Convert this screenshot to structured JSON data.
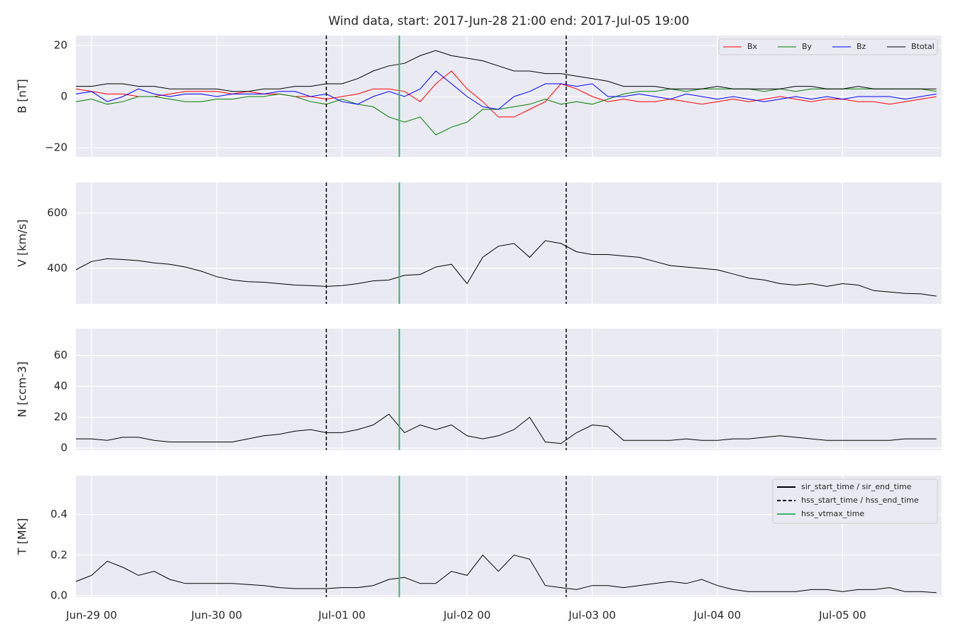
{
  "shared": {
    "x": [
      "Jun-28 21",
      "Jun-29 00",
      "Jun-29 03",
      "Jun-29 06",
      "Jun-29 09",
      "Jun-29 12",
      "Jun-29 15",
      "Jun-29 18",
      "Jun-29 21",
      "Jun-30 00",
      "Jun-30 03",
      "Jun-30 06",
      "Jun-30 09",
      "Jun-30 12",
      "Jun-30 15",
      "Jun-30 18",
      "Jun-30 21",
      "Jul-01 00",
      "Jul-01 03",
      "Jul-01 06",
      "Jul-01 09",
      "Jul-01 12",
      "Jul-01 15",
      "Jul-01 18",
      "Jul-01 21",
      "Jul-02 00",
      "Jul-02 03",
      "Jul-02 06",
      "Jul-02 09",
      "Jul-02 12",
      "Jul-02 15",
      "Jul-02 18",
      "Jul-02 21",
      "Jul-03 00",
      "Jul-03 03",
      "Jul-03 06",
      "Jul-03 09",
      "Jul-03 12",
      "Jul-03 15",
      "Jul-03 18",
      "Jul-03 21",
      "Jul-04 00",
      "Jul-04 03",
      "Jul-04 06",
      "Jul-04 09",
      "Jul-04 12",
      "Jul-04 15",
      "Jul-04 18",
      "Jul-04 21",
      "Jul-05 00",
      "Jul-05 03",
      "Jul-05 06",
      "Jul-05 09",
      "Jul-05 12",
      "Jul-05 15",
      "Jul-05 18"
    ],
    "xlim": [
      "Jun-28 21",
      "Jul-05 19"
    ],
    "xticks": [
      "Jun-29 00",
      "Jun-30 00",
      "Jul-01 00",
      "Jul-02 00",
      "Jul-03 00",
      "Jul-04 00",
      "Jul-05 00"
    ],
    "grid": true,
    "events_legend": "upper right",
    "events": [
      {
        "name": "sir_start_time / sir_end_time",
        "color": "#000000",
        "dash": "solid",
        "x": []
      },
      {
        "name": "hss_start_time / hss_end_time",
        "color": "#000000",
        "dash": "dashed",
        "x": [
          "Jun-30 21",
          "Jul-02 19"
        ]
      },
      {
        "name": "hss_vtmax_time",
        "color": "#3cb371",
        "dash": "solid",
        "x": [
          "Jul-01 11"
        ]
      }
    ]
  },
  "chart_data": [
    {
      "type": "line",
      "title": "Wind data, start: 2017-Jun-28 21:00  end: 2017-Jul-05 19:00",
      "ylabel": "B [nT]",
      "ylim": [
        -23.6,
        23.9
      ],
      "yticks": [
        {
          "value": -20,
          "label": "−20"
        },
        0,
        20
      ],
      "legend": "upper right",
      "series": [
        {
          "name": "Bx",
          "color": "#ff0000",
          "values": [
            3,
            2,
            1,
            1,
            0,
            0,
            1,
            2,
            2,
            2,
            1,
            2,
            1,
            1,
            0,
            0,
            -1,
            0,
            1,
            3,
            3,
            2,
            -2,
            5,
            10,
            3,
            -2,
            -8,
            -8,
            -5,
            -2,
            5,
            3,
            0,
            -2,
            -1,
            -2,
            -2,
            -1,
            -2,
            -3,
            -2,
            -1,
            -2,
            -1,
            0,
            -1,
            -2,
            -1,
            -1,
            -2,
            -2,
            -3,
            -2,
            -1,
            0
          ]
        },
        {
          "name": "By",
          "color": "#008000",
          "values": [
            -2,
            -1,
            -3,
            -2,
            0,
            0,
            -1,
            -2,
            -2,
            -1,
            -1,
            0,
            0,
            1,
            0,
            -2,
            -3,
            -1,
            -3,
            -4,
            -8,
            -10,
            -8,
            -15,
            -12,
            -10,
            -5,
            -5,
            -4,
            -3,
            -1,
            -3,
            -2,
            -3,
            -1,
            1,
            2,
            2,
            3,
            2,
            3,
            3,
            3,
            3,
            2,
            3,
            2,
            3,
            3,
            3,
            3,
            3,
            3,
            3,
            3,
            2
          ]
        },
        {
          "name": "Bz",
          "color": "#0000ff",
          "values": [
            1,
            2,
            -2,
            0,
            3,
            1,
            0,
            1,
            1,
            0,
            1,
            1,
            1,
            2,
            2,
            0,
            1,
            -2,
            -3,
            0,
            2,
            0,
            3,
            10,
            5,
            0,
            -4,
            -5,
            0,
            2,
            5,
            5,
            4,
            5,
            0,
            0,
            1,
            0,
            -1,
            1,
            0,
            -1,
            0,
            -1,
            -2,
            -1,
            0,
            -1,
            0,
            -1,
            0,
            0,
            0,
            -1,
            0,
            1
          ]
        },
        {
          "name": "Btotal",
          "color": "#000000",
          "values": [
            4,
            4,
            5,
            5,
            4,
            4,
            3,
            3,
            3,
            3,
            2,
            2,
            3,
            3,
            4,
            4,
            5,
            5,
            7,
            10,
            12,
            13,
            16,
            18,
            16,
            15,
            14,
            12,
            10,
            10,
            9,
            9,
            8,
            7,
            6,
            4,
            4,
            4,
            3,
            3,
            3,
            4,
            3,
            3,
            3,
            3,
            4,
            4,
            3,
            3,
            4,
            3,
            3,
            3,
            3,
            3
          ]
        }
      ]
    },
    {
      "type": "line",
      "ylabel": "V [km/s]",
      "ylim": [
        272,
        710
      ],
      "yticks": [
        400,
        600
      ],
      "color": "#000000",
      "values": [
        395,
        425,
        435,
        432,
        428,
        420,
        415,
        405,
        390,
        370,
        358,
        352,
        350,
        345,
        340,
        338,
        335,
        338,
        345,
        355,
        358,
        375,
        378,
        405,
        415,
        345,
        440,
        480,
        490,
        440,
        500,
        490,
        460,
        450,
        450,
        445,
        440,
        425,
        410,
        405,
        400,
        395,
        380,
        365,
        358,
        345,
        340,
        345,
        335,
        345,
        340,
        320,
        315,
        310,
        308,
        300
      ]
    },
    {
      "type": "line",
      "ylabel": "N [ccm-3]",
      "ylim": [
        -1.3,
        77.3
      ],
      "yticks": [
        0,
        20,
        40,
        60
      ],
      "color": "#000000",
      "values": [
        6,
        6,
        5,
        7,
        7,
        5,
        4,
        4,
        4,
        4,
        4,
        6,
        8,
        9,
        11,
        12,
        10,
        10,
        12,
        15,
        22,
        10,
        15,
        12,
        15,
        8,
        6,
        8,
        12,
        20,
        4,
        3,
        10,
        15,
        14,
        5,
        5,
        5,
        5,
        6,
        5,
        5,
        6,
        6,
        7,
        8,
        7,
        6,
        5,
        5,
        5,
        5,
        5,
        6,
        6,
        6
      ]
    },
    {
      "type": "line",
      "ylabel": "T [MK]",
      "ylim": [
        -0.007,
        0.591
      ],
      "yticks": [
        {
          "value": 0,
          "label": "0.0"
        },
        0.2,
        0.4
      ],
      "color": "#000000",
      "values": [
        0.07,
        0.1,
        0.17,
        0.14,
        0.1,
        0.12,
        0.08,
        0.06,
        0.06,
        0.06,
        0.06,
        0.055,
        0.05,
        0.04,
        0.035,
        0.035,
        0.035,
        0.04,
        0.04,
        0.05,
        0.08,
        0.09,
        0.06,
        0.06,
        0.12,
        0.1,
        0.2,
        0.12,
        0.2,
        0.18,
        0.05,
        0.04,
        0.03,
        0.05,
        0.05,
        0.04,
        0.05,
        0.06,
        0.07,
        0.06,
        0.08,
        0.05,
        0.03,
        0.02,
        0.02,
        0.02,
        0.02,
        0.03,
        0.03,
        0.02,
        0.03,
        0.03,
        0.04,
        0.02,
        0.02,
        0.015
      ]
    }
  ]
}
